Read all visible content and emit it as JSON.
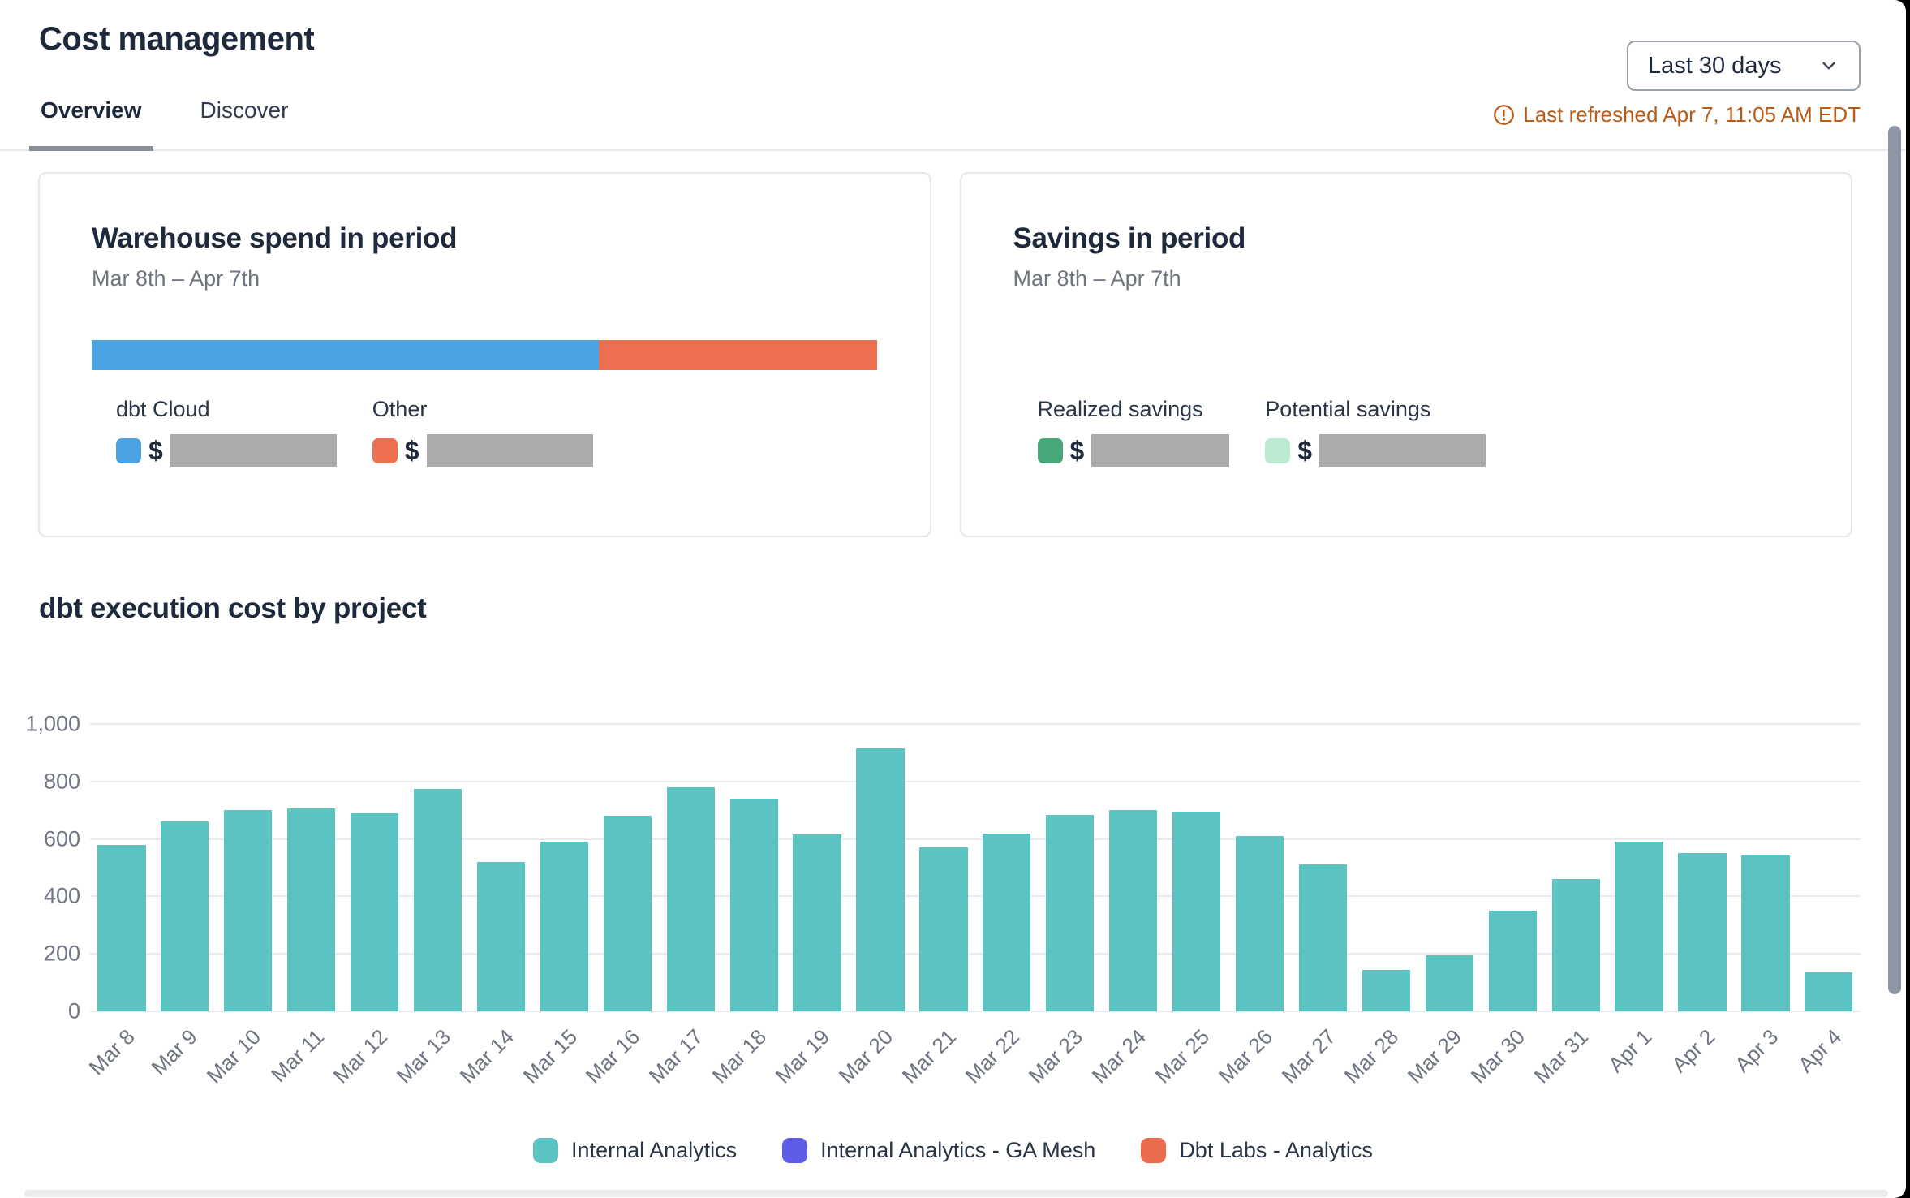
{
  "header": {
    "title": "Cost management",
    "range_selector": "Last 30 days",
    "last_refreshed": "Last refreshed Apr 7, 11:05 AM EDT"
  },
  "tabs": [
    {
      "label": "Overview",
      "active": true
    },
    {
      "label": "Discover",
      "active": false
    }
  ],
  "warehouse_card": {
    "title": "Warehouse spend in period",
    "period": "Mar 8th – Apr 7th",
    "stacked_bar": [
      {
        "name": "dbt Cloud",
        "color": "#4ba2e2",
        "percent": 64.5
      },
      {
        "name": "Other",
        "color": "#ec6f50",
        "percent": 35.5
      }
    ],
    "items": [
      {
        "label": "dbt Cloud",
        "swatch": "#4ba2e2",
        "prefix": "$",
        "value_hidden": true
      },
      {
        "label": "Other",
        "swatch": "#ec6f50",
        "prefix": "$",
        "value_hidden": true
      }
    ]
  },
  "savings_card": {
    "title": "Savings in period",
    "period": "Mar 8th – Apr 7th",
    "items": [
      {
        "label": "Realized savings",
        "swatch": "#46a878",
        "prefix": "$",
        "value_hidden": true
      },
      {
        "label": "Potential savings",
        "swatch": "#bdebd2",
        "prefix": "$",
        "value_hidden": true
      }
    ]
  },
  "chart_data": {
    "type": "bar",
    "title": "dbt execution cost by project",
    "categories": [
      "Mar 8",
      "Mar 9",
      "Mar 10",
      "Mar 11",
      "Mar 12",
      "Mar 13",
      "Mar 14",
      "Mar 15",
      "Mar 16",
      "Mar 17",
      "Mar 18",
      "Mar 19",
      "Mar 20",
      "Mar 21",
      "Mar 22",
      "Mar 23",
      "Mar 24",
      "Mar 25",
      "Mar 26",
      "Mar 27",
      "Mar 28",
      "Mar 29",
      "Mar 30",
      "Mar 31",
      "Apr 1",
      "Apr 2",
      "Apr 3",
      "Apr 4"
    ],
    "values": [
      580,
      660,
      700,
      705,
      690,
      775,
      520,
      590,
      680,
      780,
      740,
      615,
      915,
      570,
      620,
      685,
      700,
      695,
      610,
      510,
      145,
      195,
      350,
      460,
      590,
      550,
      545,
      135
    ],
    "bar_color": "#5cc3c3",
    "ylim": [
      0,
      1000
    ],
    "yticks": [
      0,
      200,
      400,
      600,
      800,
      1000
    ],
    "ytick_labels": [
      "0",
      "200",
      "400",
      "600",
      "800",
      "1,000"
    ],
    "grid": true,
    "legend_position": "bottom",
    "legend": [
      {
        "label": "Internal Analytics",
        "color": "#5cc3c3"
      },
      {
        "label": "Internal Analytics - GA Mesh",
        "color": "#5f5ce8"
      },
      {
        "label": "Dbt Labs - Analytics",
        "color": "#e96d4d"
      }
    ]
  }
}
